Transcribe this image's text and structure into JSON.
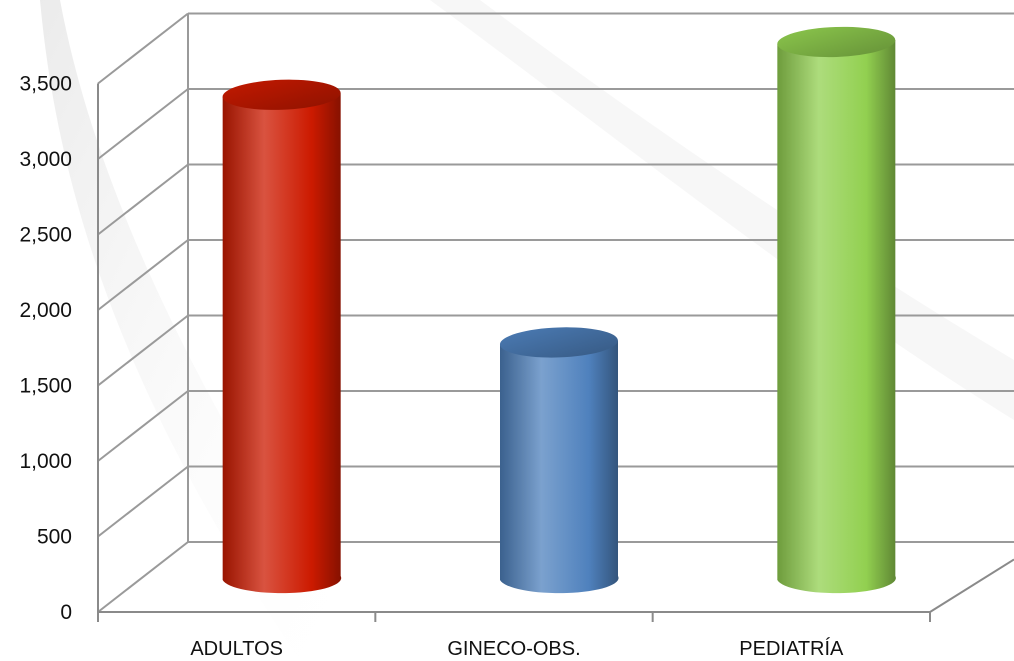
{
  "chart_data": {
    "type": "bar",
    "style": "3d-cylinder",
    "categories": [
      "ADULTOS",
      "GINECO-OBS.",
      "PEDIATRÍA"
    ],
    "values": [
      3200,
      1560,
      3550
    ],
    "colors": [
      "#cc1a00",
      "#4f81bd",
      "#92d050"
    ],
    "ylim": [
      0,
      3500
    ],
    "ytick_values": [
      0,
      500,
      1000,
      1500,
      2000,
      2500,
      3000,
      3500
    ],
    "ytick_labels": [
      "0",
      "500",
      "1,000",
      "1,500",
      "2,000",
      "2,500",
      "3,000",
      "3,500"
    ],
    "grid": true,
    "legend": "none"
  }
}
